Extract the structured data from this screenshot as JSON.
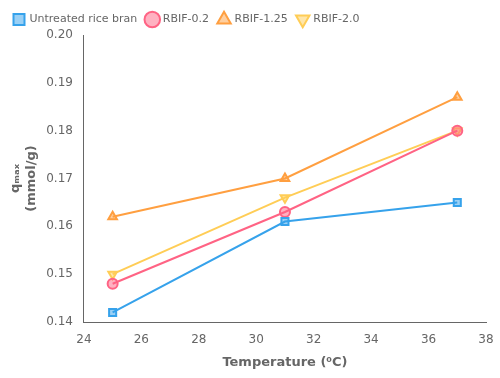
{
  "chart_data": {
    "type": "line",
    "x": [
      25,
      31,
      37
    ],
    "series": [
      {
        "name": "Untreated rice bran",
        "values": [
          0.142,
          0.161,
          0.165
        ],
        "marker": "square"
      },
      {
        "name": "RBIF-0.2",
        "values": [
          0.148,
          0.163,
          0.18
        ],
        "marker": "circle"
      },
      {
        "name": "RBIF-1.25",
        "values": [
          0.162,
          0.17,
          0.187
        ],
        "marker": "triangle-up"
      },
      {
        "name": "RBIF-2.0",
        "values": [
          0.15,
          0.166,
          0.18
        ],
        "marker": "triangle-down"
      }
    ],
    "xlabel": "Temperature (⁰C)",
    "ylabel": [
      "qₘₐₓ",
      "(mmol/g)"
    ],
    "xlim": [
      24,
      38
    ],
    "ylim": [
      0.14,
      0.2
    ],
    "xticks": [
      24,
      26,
      28,
      30,
      32,
      34,
      36,
      38
    ],
    "yticks": [
      0.14,
      0.15,
      0.16,
      0.17,
      0.18,
      0.19,
      {
        "value": 0.2,
        "label": "0.20"
      }
    ],
    "legend": "upper left",
    "grid": false
  }
}
